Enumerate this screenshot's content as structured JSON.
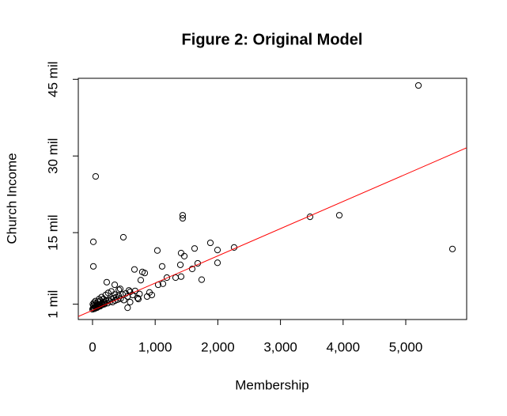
{
  "chart_data": {
    "type": "scatter",
    "title": "Figure 2: Original Model",
    "x_label": "Membership",
    "y_label": "Church Income",
    "xlim": [
      -227,
      5972
    ],
    "ylim": [
      -2.0,
      45.2
    ],
    "xticks": [
      0,
      {
        "value": 1000,
        "label": "1,000"
      },
      {
        "value": 2000,
        "label": "2,000"
      },
      {
        "value": 3000,
        "label": "3,000"
      },
      {
        "value": 4000,
        "label": "4,000"
      },
      {
        "value": 5000,
        "label": "5,000"
      }
    ],
    "yticks": [
      {
        "value": 1,
        "label": "1 mil"
      },
      {
        "value": 15,
        "label": "15 mil"
      },
      {
        "value": 30,
        "label": "30 mil"
      },
      {
        "value": 45,
        "label": "45 mil"
      }
    ],
    "color": "#000000",
    "x": [
      5202,
      5745,
      3472,
      3939,
      50,
      13,
      13,
      492,
      1439,
      1439,
      1035,
      1881,
      1995,
      2260,
      1629,
      1414,
      1465,
      1679,
      1591,
      1742,
      1995,
      1402,
      1414,
      1326,
      1187,
      1111,
      795,
      833,
      669,
      1048,
      947,
      909,
      871,
      1124,
      770,
      732,
      581,
      227,
      354,
      442,
      0,
      5,
      10,
      15,
      20,
      25,
      30,
      35,
      40,
      45,
      50,
      60,
      65,
      70,
      80,
      85,
      90,
      100,
      105,
      110,
      120,
      125,
      130,
      140,
      145,
      150,
      160,
      170,
      175,
      180,
      190,
      200,
      210,
      220,
      240,
      250,
      260,
      280,
      300,
      300,
      320,
      340,
      350,
      360,
      380,
      400,
      420,
      420,
      450,
      480,
      500,
      530,
      560,
      560,
      600,
      600,
      640,
      680,
      720,
      750
    ],
    "values": [
      43.8,
      11.8,
      18.1,
      18.4,
      26.0,
      13.2,
      8.4,
      14.1,
      18.4,
      17.8,
      11.5,
      13.0,
      11.6,
      12.1,
      11.9,
      11.0,
      10.4,
      9.0,
      7.9,
      5.8,
      9.1,
      8.7,
      6.4,
      6.2,
      6.2,
      8.4,
      7.3,
      7.1,
      7.8,
      4.8,
      2.8,
      3.3,
      2.5,
      5.0,
      5.7,
      2.0,
      3.7,
      5.3,
      4.8,
      4.0,
      0.0,
      1.0,
      0.2,
      0.7,
      0.3,
      1.3,
      0.1,
      0.9,
      0.5,
      1.6,
      0.4,
      0.6,
      1.1,
      0.3,
      0.8,
      1.5,
      0.5,
      0.7,
      2.0,
      0.9,
      0.6,
      1.7,
      1.0,
      0.8,
      2.4,
      1.2,
      0.9,
      1.1,
      2.0,
      1.4,
      1.0,
      1.3,
      2.8,
      1.6,
      1.2,
      3.2,
      1.8,
      1.5,
      2.0,
      3.5,
      1.4,
      2.2,
      2.9,
      1.7,
      2.4,
      1.9,
      2.6,
      3.8,
      2.1,
      2.9,
      1.8,
      3.1,
      2.5,
      0.3,
      3.4,
      1.4,
      2.8,
      3.6,
      2.2,
      3.0
    ],
    "fit_line": {
      "x": [
        -227,
        5972
      ],
      "y": [
        -1.4,
        31.6
      ],
      "color": "#ff0000"
    }
  }
}
